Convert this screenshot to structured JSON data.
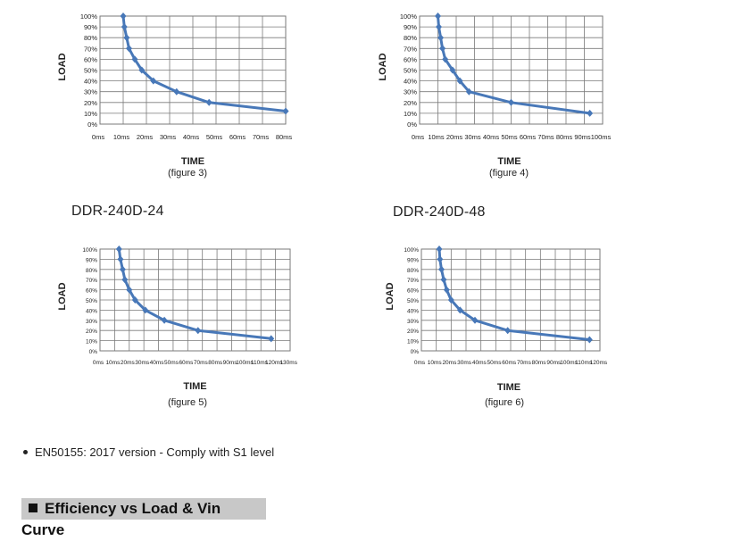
{
  "chart_data": [
    {
      "type": "line",
      "title": "",
      "xlabel": "TIME",
      "ylabel": "LOAD",
      "caption": "(figure 3)",
      "x_ticks": [
        "0ms",
        "10ms",
        "20ms",
        "30ms",
        "40ms",
        "50ms",
        "60ms",
        "70ms",
        "80ms"
      ],
      "y_ticks": [
        "0%",
        "10%",
        "20%",
        "30%",
        "40%",
        "50%",
        "60%",
        "70%",
        "80%",
        "90%",
        "100%"
      ],
      "xlim": [
        0,
        80
      ],
      "ylim": [
        0,
        100
      ],
      "grid": true,
      "series": [
        {
          "x": [
            10,
            10.5,
            11.5,
            12.5,
            15,
            18,
            23,
            33,
            47,
            80
          ],
          "y": [
            100,
            90,
            80,
            70,
            60,
            50,
            40,
            30,
            20,
            12
          ]
        }
      ]
    },
    {
      "type": "line",
      "title": "",
      "xlabel": "TIME",
      "ylabel": "LOAD",
      "caption": "(figure 4)",
      "x_ticks": [
        "0ms",
        "10ms",
        "20ms",
        "30ms",
        "40ms",
        "50ms",
        "60ms",
        "70ms",
        "80ms",
        "90ms",
        "100ms"
      ],
      "y_ticks": [
        "0%",
        "10%",
        "20%",
        "30%",
        "40%",
        "50%",
        "60%",
        "70%",
        "80%",
        "90%",
        "100%"
      ],
      "xlim": [
        0,
        100
      ],
      "ylim": [
        0,
        100
      ],
      "grid": true,
      "series": [
        {
          "x": [
            10,
            10.5,
            11.5,
            12.5,
            14,
            18,
            22,
            27,
            50,
            93
          ],
          "y": [
            100,
            90,
            80,
            70,
            60,
            50,
            40,
            30,
            20,
            10
          ]
        }
      ]
    },
    {
      "type": "line",
      "title": "",
      "xlabel": "TIME",
      "ylabel": "LOAD",
      "caption": "(figure 5)",
      "x_ticks": [
        "0ms",
        "10ms",
        "20ms",
        "30ms",
        "40ms",
        "50ms",
        "60ms",
        "70ms",
        "80ms",
        "90ms",
        "100ms",
        "110ms",
        "120ms",
        "130ms"
      ],
      "y_ticks": [
        "0%",
        "10%",
        "20%",
        "30%",
        "40%",
        "50%",
        "60%",
        "70%",
        "80%",
        "90%",
        "100%"
      ],
      "xlim": [
        0,
        130
      ],
      "ylim": [
        0,
        100
      ],
      "grid": true,
      "series": [
        {
          "x": [
            13,
            14,
            15.5,
            17,
            20,
            24,
            31,
            44,
            67,
            117
          ],
          "y": [
            100,
            90,
            80,
            70,
            60,
            50,
            40,
            30,
            20,
            12
          ]
        }
      ]
    },
    {
      "type": "line",
      "title": "",
      "xlabel": "TIME",
      "ylabel": "LOAD",
      "caption": "(figure 6)",
      "x_ticks": [
        "0ms",
        "10ms",
        "20ms",
        "30ms",
        "40ms",
        "50ms",
        "60ms",
        "70ms",
        "80ms",
        "90ms",
        "100ms",
        "110ms",
        "120ms"
      ],
      "y_ticks": [
        "0%",
        "10%",
        "20%",
        "30%",
        "40%",
        "50%",
        "60%",
        "70%",
        "80%",
        "90%",
        "100%"
      ],
      "xlim": [
        0,
        120
      ],
      "ylim": [
        0,
        100
      ],
      "grid": true,
      "series": [
        {
          "x": [
            12,
            12.5,
            13.5,
            15,
            17,
            20,
            26,
            36,
            58,
            113
          ],
          "y": [
            100,
            90,
            80,
            70,
            60,
            50,
            40,
            30,
            20,
            11
          ]
        }
      ]
    }
  ],
  "models": {
    "left": "DDR-240D-24",
    "right": "DDR-240D-48"
  },
  "bullet_text": "EN50155: 2017 version - Comply with S1 level",
  "section_title": "Efficiency vs Load & Vin Curve",
  "colors": {
    "series": "#4878b8",
    "grid": "#7a7a7a",
    "text": "#222222",
    "section_bg": "#c8c8c8"
  }
}
